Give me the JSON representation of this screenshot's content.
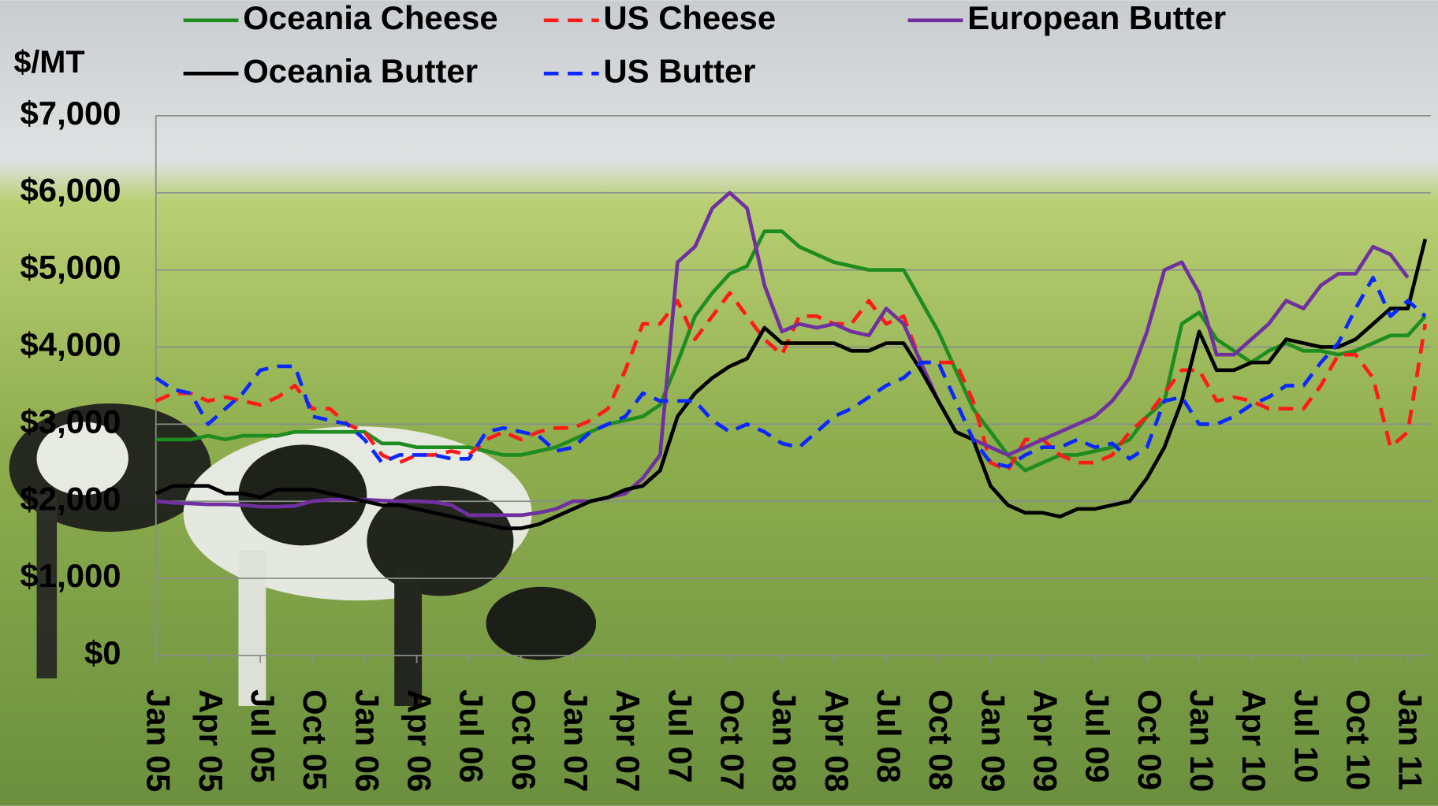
{
  "chart_data": {
    "type": "line",
    "y_label": "$/MT",
    "categories": [
      "Jan 05",
      null,
      null,
      "Apr 05",
      null,
      null,
      "Jul 05",
      null,
      null,
      "Oct 05",
      null,
      null,
      "Jan 06",
      null,
      null,
      "Apr 06",
      null,
      null,
      "Jul 06",
      null,
      null,
      "Oct 06",
      null,
      null,
      "Jan 07",
      null,
      null,
      "Apr 07",
      null,
      null,
      "Jul 07",
      null,
      null,
      "Oct 07",
      null,
      null,
      "Jan 08",
      null,
      null,
      "Apr 08",
      null,
      null,
      "Jul 08",
      null,
      null,
      "Oct 08",
      null,
      null,
      "Jan 09",
      null,
      null,
      "Apr 09",
      null,
      null,
      "Jul 09",
      null,
      null,
      "Oct 09",
      null,
      null,
      "Jan 10",
      null,
      null,
      "Apr 10",
      null,
      null,
      "Jul 10",
      null,
      null,
      "Oct 10",
      null,
      null,
      "Jan 11",
      null
    ],
    "series": [
      {
        "name": "Oceania Cheese",
        "color": "#1e8c1e",
        "style": "solid",
        "values": [
          2800,
          2800,
          2800,
          2850,
          2800,
          2850,
          2850,
          2850,
          2900,
          2900,
          2900,
          2900,
          2900,
          2750,
          2750,
          2700,
          2700,
          2700,
          2700,
          2650,
          2600,
          2600,
          2650,
          2700,
          2800,
          2900,
          3000,
          3050,
          3100,
          3250,
          3800,
          4400,
          4700,
          4950,
          5050,
          5500,
          5500,
          5300,
          5200,
          5100,
          5050,
          5000,
          5000,
          5000,
          4600,
          4200,
          3700,
          3200,
          2900,
          2600,
          2400,
          2500,
          2600,
          2600,
          2650,
          2700,
          2800,
          3100,
          3300,
          4300,
          4450,
          4100,
          3950,
          3800,
          3950,
          4050,
          3950,
          3950,
          3900,
          3950,
          4050,
          4150,
          4150,
          4400
        ]
      },
      {
        "name": "US Cheese",
        "color": "#ff1a1a",
        "style": "dashed",
        "values": [
          3300,
          3400,
          3400,
          3300,
          3350,
          3300,
          3250,
          3350,
          3500,
          3200,
          3200,
          3000,
          2900,
          2600,
          2500,
          2600,
          2600,
          2650,
          2600,
          2800,
          2900,
          2800,
          2900,
          2950,
          2950,
          3050,
          3200,
          3700,
          4300,
          4300,
          4600,
          4100,
          4400,
          4700,
          4400,
          4100,
          3900,
          4400,
          4400,
          4300,
          4300,
          4600,
          4300,
          4400,
          3800,
          3800,
          3800,
          3300,
          2500,
          2400,
          2800,
          2800,
          2600,
          2500,
          2500,
          2600,
          2900,
          3100,
          3400,
          3700,
          3700,
          3300,
          3350,
          3300,
          3200,
          3200,
          3200,
          3500,
          3900,
          3900,
          3600,
          2700,
          2900,
          4300
        ]
      },
      {
        "name": "European Butter",
        "color": "#7030a0",
        "style": "solid",
        "values": [
          2000,
          1980,
          1970,
          1960,
          1960,
          1950,
          1930,
          1930,
          1940,
          2000,
          2020,
          2020,
          2020,
          2010,
          2000,
          2000,
          1990,
          1950,
          1820,
          1820,
          1820,
          1820,
          1850,
          1900,
          2000,
          2000,
          2050,
          2100,
          2300,
          2600,
          5100,
          5300,
          5800,
          6000,
          5800,
          4800,
          4200,
          4300,
          4250,
          4300,
          4200,
          4150,
          4500,
          4300,
          3800,
          3300,
          2900,
          2800,
          2700,
          2600,
          2700,
          2800,
          2900,
          3000,
          3100,
          3300,
          3600,
          4200,
          5000,
          5100,
          4700,
          3900,
          3900,
          4100,
          4300,
          4600,
          4500,
          4800,
          4950,
          4950,
          5300,
          5200,
          4900,
          null
        ]
      },
      {
        "name": "Oceania Butter",
        "color": "#000000",
        "style": "solid",
        "values": [
          2100,
          2200,
          2200,
          2200,
          2100,
          2100,
          2050,
          2150,
          2150,
          2150,
          2100,
          2050,
          2000,
          1950,
          1950,
          1900,
          1850,
          1800,
          1750,
          1700,
          1650,
          1650,
          1700,
          1800,
          1900,
          2000,
          2050,
          2150,
          2200,
          2400,
          3100,
          3400,
          3600,
          3750,
          3850,
          4250,
          4050,
          4050,
          4050,
          4050,
          3950,
          3950,
          4050,
          4050,
          3700,
          3300,
          2900,
          2800,
          2200,
          1950,
          1850,
          1850,
          1800,
          1900,
          1900,
          1950,
          2000,
          2300,
          2700,
          3300,
          4200,
          3700,
          3700,
          3800,
          3800,
          4100,
          4050,
          4000,
          4000,
          4100,
          4300,
          4500,
          4500,
          5400
        ]
      },
      {
        "name": "US Butter",
        "color": "#0a28ff",
        "style": "dashed",
        "values": [
          3600,
          3450,
          3400,
          3000,
          3200,
          3400,
          3700,
          3750,
          3750,
          3100,
          3050,
          3000,
          2800,
          2500,
          2600,
          2600,
          2600,
          2550,
          2550,
          2900,
          2950,
          2900,
          2850,
          2650,
          2700,
          2900,
          3000,
          3100,
          3400,
          3300,
          3300,
          3300,
          3050,
          2900,
          3000,
          2900,
          2750,
          2700,
          2900,
          3100,
          3200,
          3350,
          3500,
          3600,
          3800,
          3800,
          3300,
          2800,
          2500,
          2450,
          2600,
          2700,
          2700,
          2800,
          2700,
          2750,
          2550,
          2700,
          3300,
          3350,
          3000,
          3000,
          3100,
          3250,
          3350,
          3500,
          3500,
          3800,
          4050,
          4500,
          4900,
          4400,
          4600,
          4400
        ]
      }
    ],
    "ylim": [
      0,
      7000
    ],
    "yticks": [
      {
        "value": 0,
        "label": "$0"
      },
      {
        "value": 1000,
        "label": "$1,000"
      },
      {
        "value": 2000,
        "label": "$2,000"
      },
      {
        "value": 3000,
        "label": "$3,000"
      },
      {
        "value": 4000,
        "label": "$4,000"
      },
      {
        "value": 5000,
        "label": "$5,000"
      },
      {
        "value": 6000,
        "label": "$6,000"
      },
      {
        "value": 7000,
        "label": "$7,000"
      }
    ],
    "grid": true
  }
}
